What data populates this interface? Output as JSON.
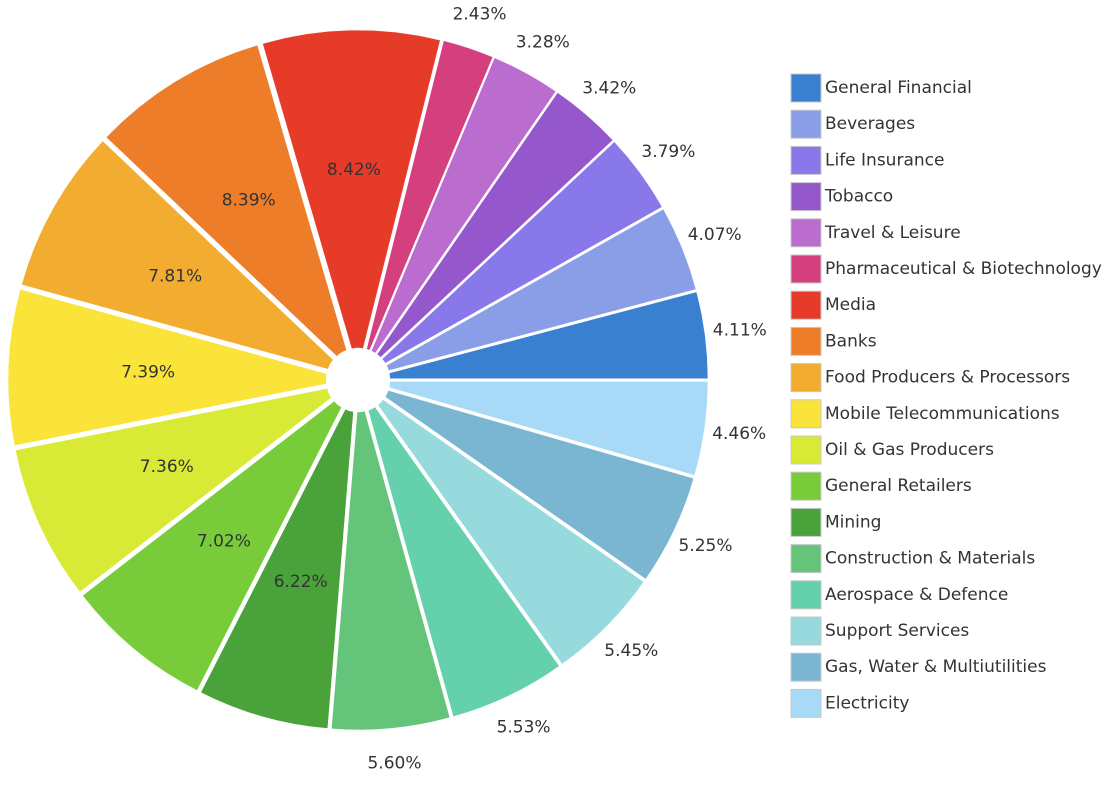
{
  "chart_data": {
    "type": "pie",
    "title": "",
    "legend_position": "right",
    "slices": [
      {
        "label": "General Financial",
        "value": 4.11,
        "display": "4.11%",
        "color": "#3a80d0"
      },
      {
        "label": "Beverages",
        "value": 4.07,
        "display": "4.07%",
        "color": "#8a9ee8"
      },
      {
        "label": "Life Insurance",
        "value": 3.79,
        "display": "3.79%",
        "color": "#8878ea"
      },
      {
        "label": "Tobacco",
        "value": 3.42,
        "display": "3.42%",
        "color": "#9457cc"
      },
      {
        "label": "Travel & Leisure",
        "value": 3.28,
        "display": "3.28%",
        "color": "#bb6ccf"
      },
      {
        "label": "Pharmaceutical & Biotechnology",
        "value": 2.43,
        "display": "2.43%",
        "color": "#d4407e"
      },
      {
        "label": "Media",
        "value": 8.42,
        "display": "8.42%",
        "color": "#e63b28"
      },
      {
        "label": "Banks",
        "value": 8.39,
        "display": "8.39%",
        "color": "#ee7d2a"
      },
      {
        "label": "Food Producers & Processors",
        "value": 7.81,
        "display": "7.81%",
        "color": "#f2ad30"
      },
      {
        "label": "Mobile Telecommunications",
        "value": 7.39,
        "display": "7.39%",
        "color": "#fbe43a"
      },
      {
        "label": "Oil & Gas Producers",
        "value": 7.36,
        "display": "7.36%",
        "color": "#d9ea36"
      },
      {
        "label": "General Retailers",
        "value": 7.02,
        "display": "7.02%",
        "color": "#78cc3a"
      },
      {
        "label": "Mining",
        "value": 6.22,
        "display": "6.22%",
        "color": "#4aa33a"
      },
      {
        "label": "Construction & Materials",
        "value": 5.6,
        "display": "5.60%",
        "color": "#64c47a"
      },
      {
        "label": "Aerospace & Defence",
        "value": 5.53,
        "display": "5.53%",
        "color": "#64d0ac"
      },
      {
        "label": "Support Services",
        "value": 5.45,
        "display": "5.45%",
        "color": "#96dade"
      },
      {
        "label": "Gas, Water & Multiutilities",
        "value": 5.25,
        "display": "5.25%",
        "color": "#7ab6d2"
      },
      {
        "label": "Electricity",
        "value": 4.46,
        "display": "4.46%",
        "color": "#a8daf8"
      }
    ]
  }
}
